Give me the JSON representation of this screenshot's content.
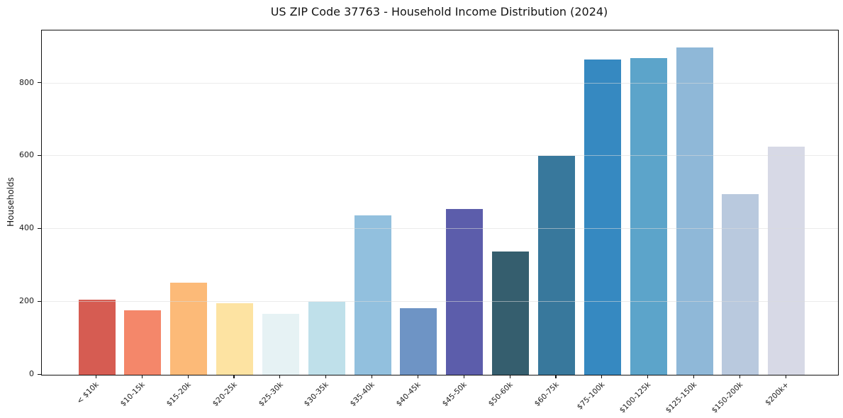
{
  "chart_data": {
    "type": "bar",
    "title": "US ZIP Code 37763 - Household Income Distribution (2024)",
    "xlabel": "",
    "ylabel": "Households",
    "categories": [
      "< $10k",
      "$10-15k",
      "$15-20k",
      "$20-25k",
      "$25-30k",
      "$30-35k",
      "$35-40k",
      "$40-45k",
      "$45-50k",
      "$50-60k",
      "$60-75k",
      "$75-100k",
      "$100-125k",
      "$125-150k",
      "$150-200k",
      "$200k+"
    ],
    "values": [
      207,
      177,
      252,
      197,
      168,
      200,
      437,
      183,
      456,
      338,
      600,
      865,
      870,
      898,
      496,
      626
    ],
    "bar_colors": [
      "#d65c52",
      "#f4876a",
      "#fcba78",
      "#fde3a2",
      "#e6f2f4",
      "#bfe0ea",
      "#92c0de",
      "#6e94c5",
      "#5c5dab",
      "#355e6e",
      "#38789c",
      "#3689c1",
      "#5ca4ca",
      "#8fb8d8",
      "#b9c9de",
      "#d7d9e6"
    ],
    "yticks": [
      0,
      200,
      400,
      600,
      800
    ],
    "ylim": [
      0,
      945
    ],
    "grid": "horizontal",
    "grid_color": "#e7e7e7",
    "legend": "none",
    "background_color": "#ffffff",
    "spine_color": "#121212",
    "x_tick_rotation_deg": 45
  }
}
